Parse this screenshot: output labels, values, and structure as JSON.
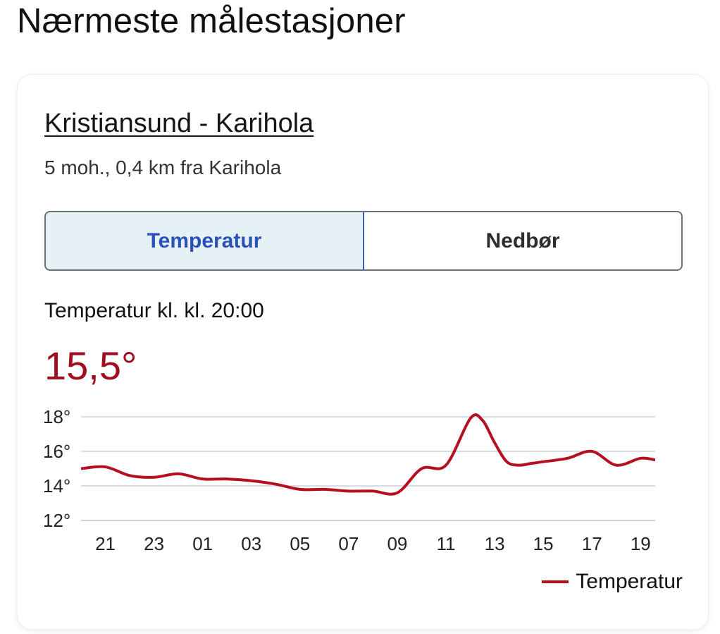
{
  "page": {
    "heading": "Nærmeste målestasjoner"
  },
  "station": {
    "name": "Kristiansund - Karihola",
    "meta": "5 moh., 0,4 km fra Karihola"
  },
  "tabs": [
    {
      "label": "Temperatur",
      "active": true
    },
    {
      "label": "Nedbør",
      "active": false
    }
  ],
  "current": {
    "caption": "Temperatur kl. kl. 20:00",
    "value": "15,5°"
  },
  "colors": {
    "temperature_line": "#b5101f",
    "current_value": "#a00f1f",
    "active_tab_bg": "#e6f1f6",
    "active_tab_text": "#2a52b8",
    "grid": "#c9d2e2"
  },
  "chart_data": {
    "type": "line",
    "title": "",
    "xlabel": "",
    "ylabel": "",
    "x_tick_labels": [
      "21",
      "23",
      "01",
      "03",
      "05",
      "07",
      "09",
      "11",
      "13",
      "15",
      "17",
      "19"
    ],
    "y_tick_labels": [
      "18°",
      "16°",
      "14°",
      "12°"
    ],
    "y_ticks": [
      18,
      16,
      14,
      12
    ],
    "ylim": [
      12,
      18
    ],
    "grid": true,
    "legend": "bottom-right",
    "series": [
      {
        "name": "Temperatur",
        "color": "#b5101f",
        "x": [
          20,
          21,
          22,
          23,
          24,
          25,
          26,
          27,
          28,
          29,
          30,
          31,
          32,
          33,
          34,
          35,
          36,
          36.5,
          37,
          37.5,
          38,
          38.5,
          39,
          40,
          41,
          42,
          43,
          43.6
        ],
        "y": [
          15.0,
          15.1,
          14.6,
          14.5,
          14.7,
          14.4,
          14.4,
          14.3,
          14.1,
          13.8,
          13.8,
          13.7,
          13.7,
          13.6,
          15.0,
          15.2,
          17.9,
          17.8,
          16.5,
          15.4,
          15.2,
          15.3,
          15.4,
          15.6,
          16.0,
          15.2,
          15.6,
          15.5
        ]
      }
    ]
  }
}
